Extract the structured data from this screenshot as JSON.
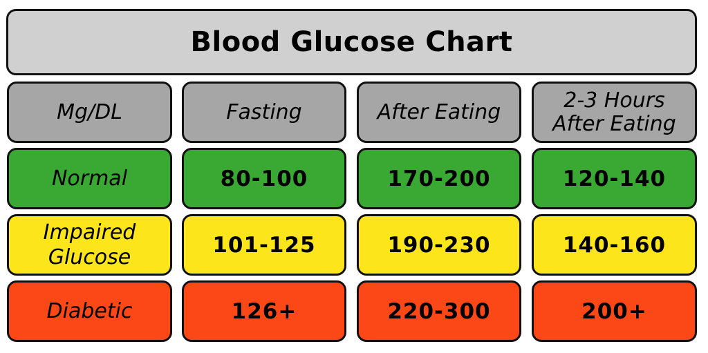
{
  "chart_data": {
    "type": "table",
    "title": "Blood Glucose Chart",
    "header": {
      "unit": "Mg/DL",
      "columns": [
        [
          "Fasting"
        ],
        [
          "After Eating"
        ],
        [
          "2-3 Hours",
          "After Eating"
        ]
      ]
    },
    "rows": [
      {
        "label": [
          "Normal"
        ],
        "color": "#3aa934",
        "values": [
          "80-100",
          "170-200",
          "120-140"
        ]
      },
      {
        "label": [
          "Impaired",
          "Glucose"
        ],
        "color": "#fde51c",
        "values": [
          "101-125",
          "190-230",
          "140-160"
        ]
      },
      {
        "label": [
          "Diabetic"
        ],
        "color": "#fb4816",
        "values": [
          "126+",
          "220-300",
          "200+"
        ]
      }
    ]
  }
}
